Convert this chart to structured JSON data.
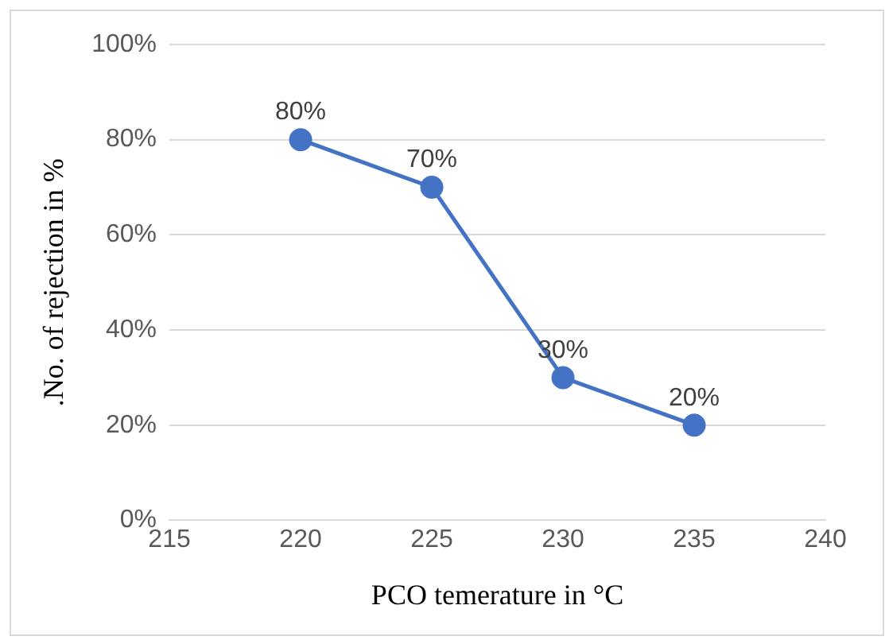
{
  "chart_data": {
    "type": "line",
    "xlabel": "PCO temerature in °C",
    "ylabel": ".No. of rejection in %",
    "x": [
      220,
      225,
      230,
      235
    ],
    "series": [
      {
        "color": "#4472c4",
        "values": [
          80,
          70,
          30,
          20
        ],
        "value_labels": [
          "80%",
          "70%",
          "30%",
          "20%"
        ]
      }
    ],
    "xlim": [
      215,
      240
    ],
    "xticks": [
      215,
      220,
      225,
      230,
      235,
      240
    ],
    "ylim": [
      0,
      100
    ],
    "yticks": [
      {
        "value": 0,
        "label": "0%"
      },
      {
        "value": 20,
        "label": "20%"
      },
      {
        "value": 40,
        "label": "40%"
      },
      {
        "value": 60,
        "label": "60%"
      },
      {
        "value": 80,
        "label": "80%"
      },
      {
        "value": 100,
        "label": "100%"
      }
    ],
    "grid": "y",
    "legend": false,
    "marker": "circle",
    "line_style": "solid"
  }
}
